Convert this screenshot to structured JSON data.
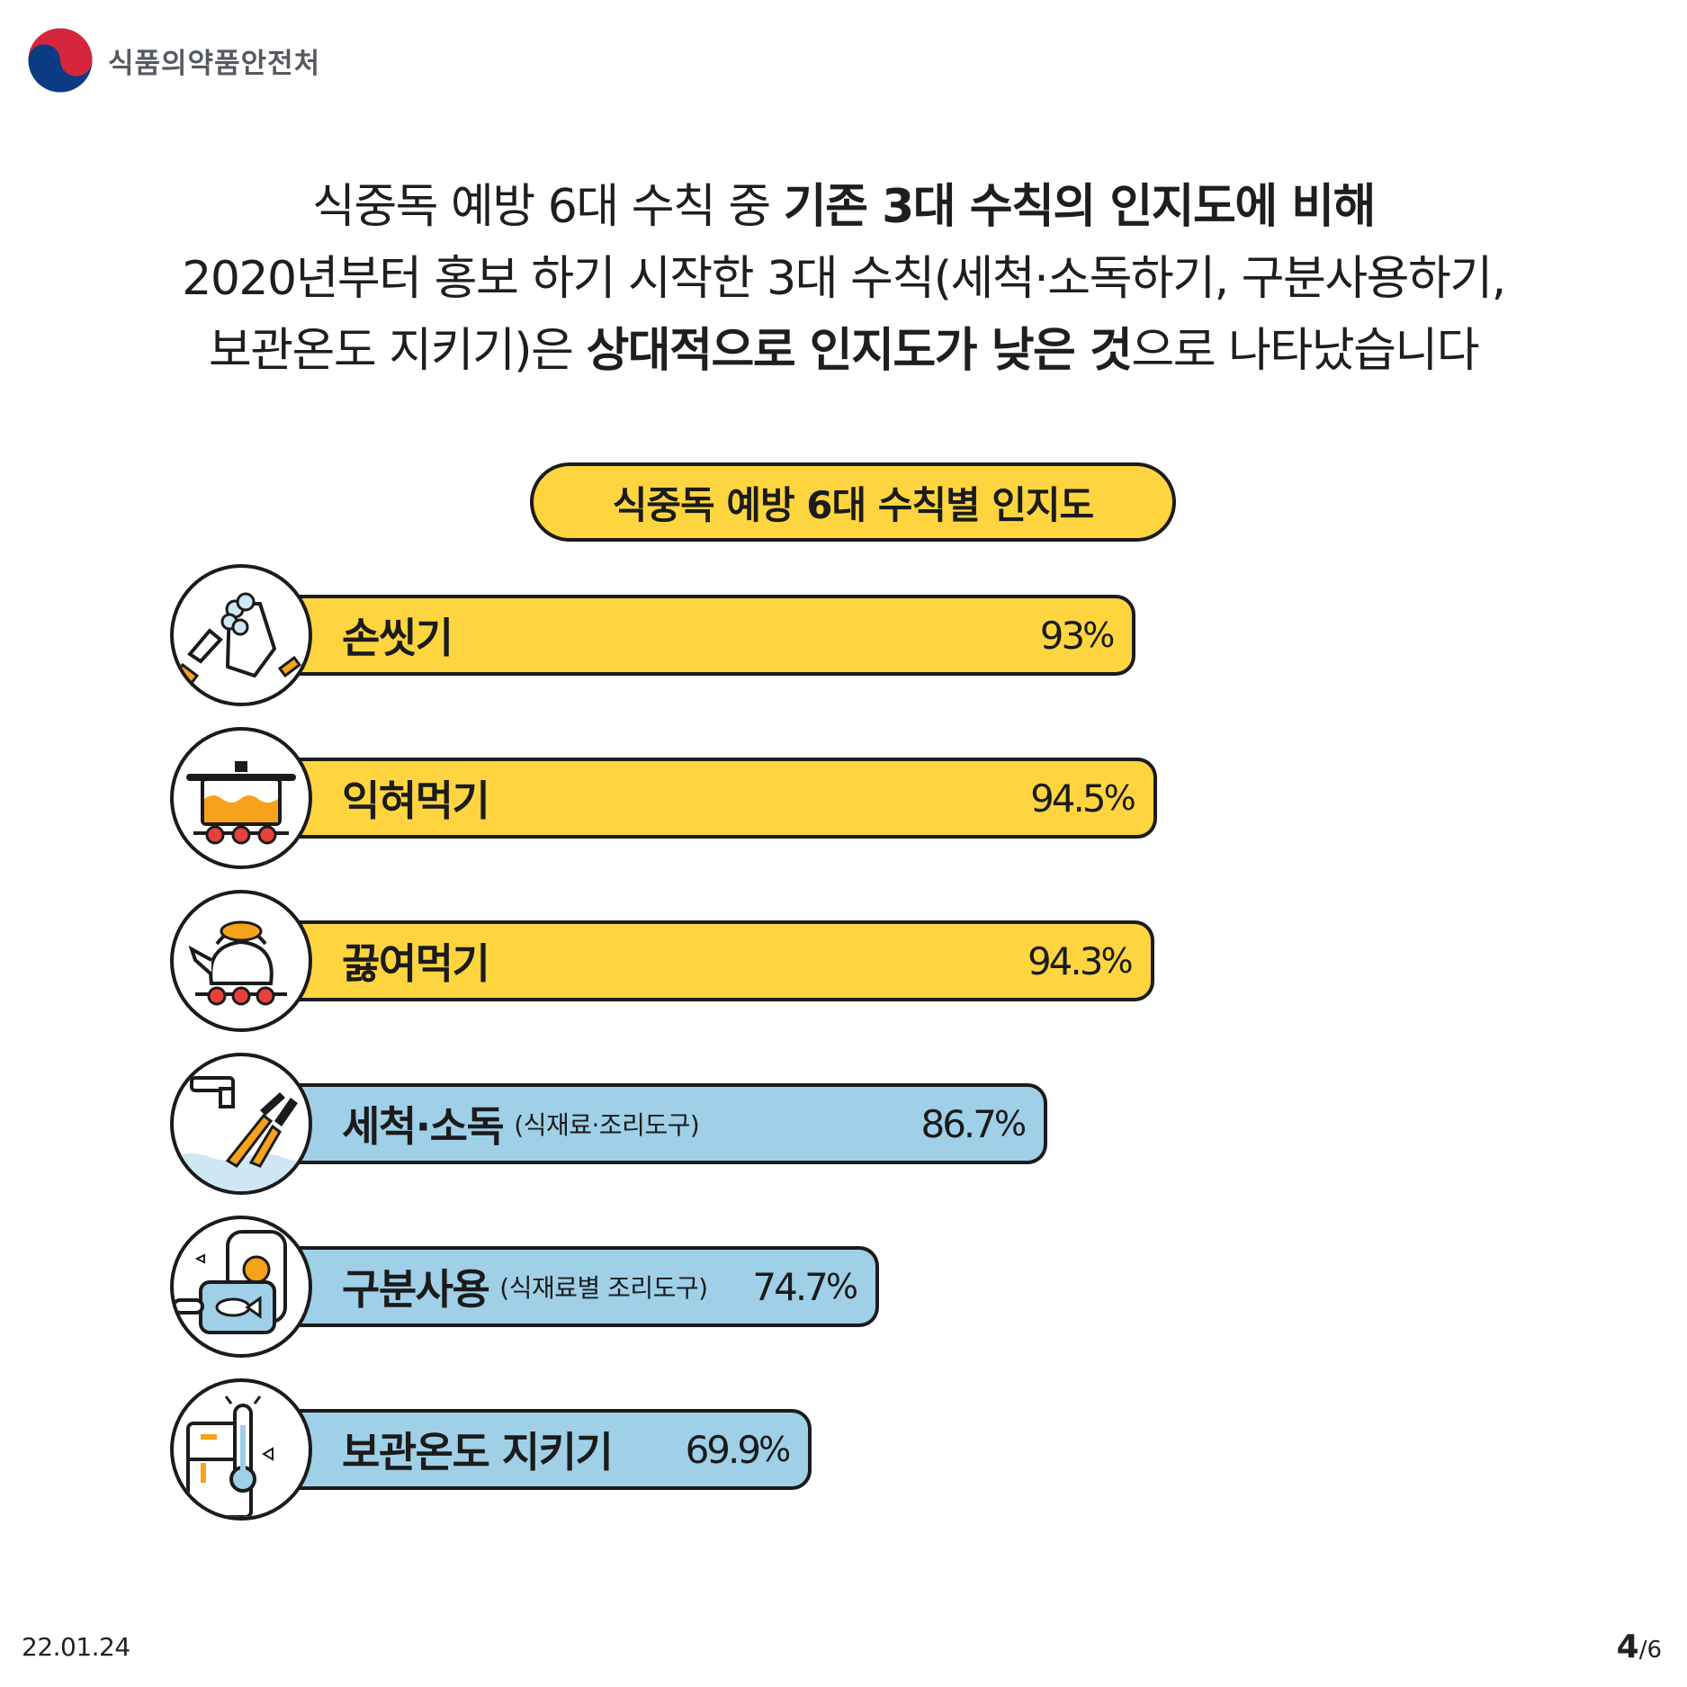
{
  "header": {
    "org_name": "식품의약품안전처"
  },
  "headline": {
    "line1_plain": "식중독 예방 6대 수칙 중 ",
    "line1_bold": "기존 3대 수칙의 인지도에 비해",
    "line2": "2020년부터 홍보 하기 시작한 3대 수칙(세척·소독하기, 구분사용하기,",
    "line3_plain_a": "보관온도 지키기)은 ",
    "line3_bold_a": "상대적으로 인지도가 낮은 것",
    "line3_plain_b": "으로 나타났습니다"
  },
  "chart_data": {
    "type": "bar",
    "orientation": "horizontal",
    "title": "식중독 예방 6대 수칙별 인지도",
    "unit": "%",
    "categories": [
      "손씻기",
      "익혀먹기",
      "끓여먹기",
      "세척·소독",
      "구분사용",
      "보관온도 지키기"
    ],
    "sublabels": [
      "",
      "",
      "",
      "(식재료·조리도구)",
      "(식재료별 조리도구)",
      ""
    ],
    "values": [
      93,
      94.5,
      94.3,
      86.7,
      74.7,
      69.9
    ],
    "value_labels": [
      "93",
      "94.5",
      "94.3",
      "86.7",
      "74.7",
      "69.9"
    ],
    "colors": [
      "#ffd53f",
      "#ffd53f",
      "#ffd53f",
      "#9fd0e8",
      "#9fd0e8",
      "#9fd0e8"
    ],
    "icons": [
      "hand-washing-icon",
      "cooking-pot-icon",
      "boiling-kettle-icon",
      "washing-utensils-icon",
      "cutting-board-icon",
      "fridge-thermometer-icon"
    ]
  },
  "footer": {
    "date": "22.01.24",
    "page_current": "4",
    "page_total": "/6"
  }
}
